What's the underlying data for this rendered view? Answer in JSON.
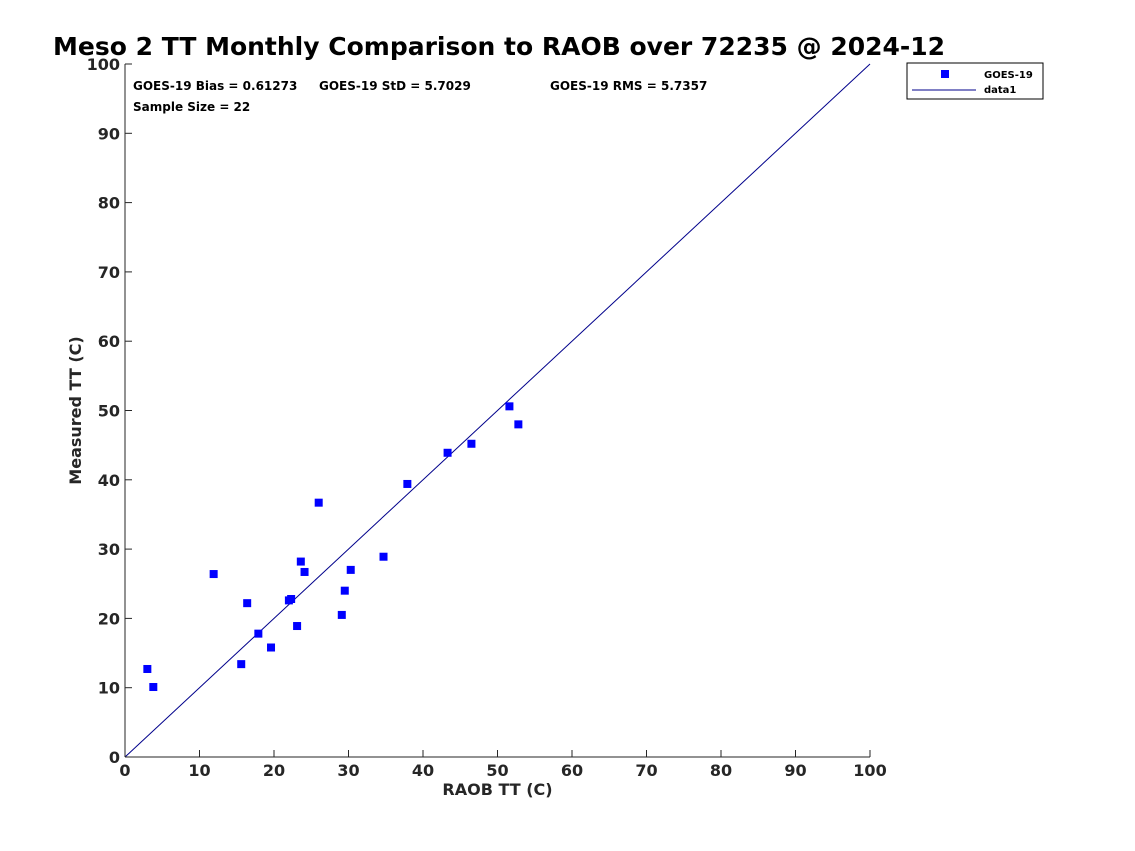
{
  "chart_data": {
    "type": "scatter",
    "title": "Meso 2 TT Monthly Comparison to RAOB over 72235 @ 2024-12",
    "xlabel": "RAOB TT (C)",
    "ylabel": "Measured TT (C)",
    "xlim": [
      0,
      100
    ],
    "ylim": [
      0,
      100
    ],
    "xticks": [
      "0",
      "10",
      "20",
      "30",
      "40",
      "50",
      "60",
      "70",
      "80",
      "90",
      "100"
    ],
    "yticks": [
      "0",
      "10",
      "20",
      "30",
      "40",
      "50",
      "60",
      "70",
      "80",
      "90",
      "100"
    ],
    "grid": false,
    "stats": {
      "bias": "GOES-19 Bias = 0.61273",
      "std": "GOES-19 StD = 5.7029",
      "rms": "GOES-19 RMS = 5.7357",
      "sample": "Sample Size = 22"
    },
    "legend": {
      "position": "outside-top-right",
      "entries": [
        "GOES-19",
        "data1"
      ]
    },
    "series": [
      {
        "name": "GOES-19",
        "kind": "scatter",
        "color": "#0000ff",
        "points": [
          [
            3.0,
            12.7
          ],
          [
            3.8,
            10.1
          ],
          [
            11.9,
            26.4
          ],
          [
            15.6,
            13.4
          ],
          [
            16.4,
            22.2
          ],
          [
            17.9,
            17.8
          ],
          [
            19.6,
            15.8
          ],
          [
            22.0,
            22.6
          ],
          [
            22.3,
            22.8
          ],
          [
            23.1,
            18.9
          ],
          [
            23.6,
            28.2
          ],
          [
            24.1,
            26.7
          ],
          [
            26.0,
            36.7
          ],
          [
            29.1,
            20.5
          ],
          [
            29.5,
            24.0
          ],
          [
            30.3,
            27.0
          ],
          [
            34.7,
            28.9
          ],
          [
            37.9,
            39.4
          ],
          [
            43.3,
            43.9
          ],
          [
            46.5,
            45.2
          ],
          [
            51.6,
            50.6
          ],
          [
            52.8,
            48.0
          ]
        ]
      },
      {
        "name": "data1",
        "kind": "line",
        "color": "#00008b",
        "points": [
          [
            0,
            0
          ],
          [
            100,
            100
          ]
        ]
      }
    ]
  }
}
